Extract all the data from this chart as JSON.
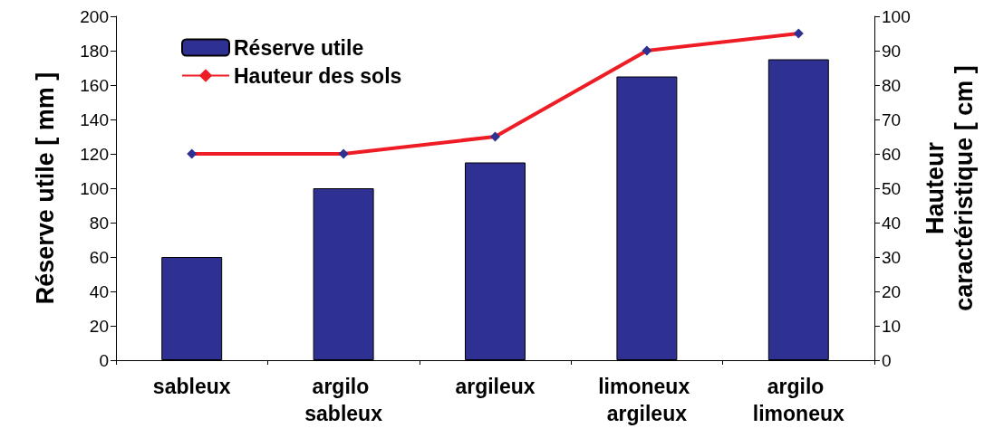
{
  "chart_data": {
    "type": "bar",
    "ylabel": "Réserve utile [ mm ]",
    "y2label": "Hauteur\ncaractéristique [ cm ]",
    "categories": [
      "sableux",
      "argilo sableux",
      "argileux",
      "limoneux argileux",
      "argilo limoneux"
    ],
    "series": [
      {
        "name": "Réserve utile",
        "color": "#2e3192",
        "values": [
          60,
          100,
          115,
          165,
          175
        ]
      },
      {
        "name": "Hauteur des sols",
        "type": "line",
        "axis": "y2",
        "color": "#ee1c24",
        "colors": [
          "#2e3192",
          "#2e3192",
          "#2e3192",
          "#2e3192",
          "#2e3192"
        ],
        "marker": "diamond",
        "values": [
          60,
          60,
          65,
          90,
          95
        ]
      }
    ],
    "ylim": [
      0,
      200
    ],
    "yticks": [
      0,
      20,
      40,
      60,
      80,
      100,
      120,
      140,
      160,
      180,
      200
    ],
    "y2lim": [
      0,
      100
    ],
    "y2ticks": [
      0,
      10,
      20,
      30,
      40,
      50,
      60,
      70,
      80,
      90,
      100
    ],
    "grid": false,
    "legend": "top left"
  }
}
